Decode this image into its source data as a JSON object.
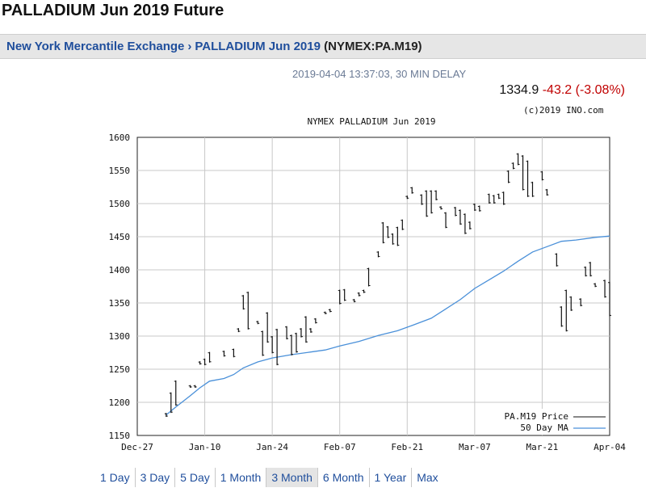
{
  "title": "PALLADIUM Jun 2019 Future",
  "breadcrumb": {
    "exchange": "New York Mercantile Exchange",
    "separator": "›",
    "contract": "PALLADIUM Jun 2019",
    "symbol": "(NYMEX:PA.M19)"
  },
  "timestamp": "2019-04-04 13:37:03, 30 MIN DELAY",
  "quote": {
    "price": "1334.9",
    "change": "-43.2",
    "change_pct": "(-3.08%)"
  },
  "copyright": "(c)2019 INO.com",
  "colors": {
    "price": "#111111",
    "ma": "#4a90d9",
    "negative": "#c00000",
    "link": "#1f4e9c"
  },
  "ranges": [
    "1 Day",
    "3 Day",
    "5 Day",
    "1 Month",
    "3 Month",
    "6 Month",
    "1 Year",
    "Max"
  ],
  "active_range": "3 Month",
  "chart_data": {
    "type": "line",
    "title": "NYMEX PALLADIUM Jun 2019",
    "ylim": [
      1150,
      1600
    ],
    "yticks": [
      1150,
      1200,
      1250,
      1300,
      1350,
      1400,
      1450,
      1500,
      1550,
      1600
    ],
    "x_range": [
      "2018-12-27",
      "2019-04-04"
    ],
    "xticks": [
      "Dec-27",
      "Jan-10",
      "Jan-24",
      "Feb-07",
      "Feb-21",
      "Mar-07",
      "Mar-21",
      "Apr-04"
    ],
    "grid": true,
    "legend_position": "bottom-right",
    "series": [
      {
        "name": "PA.M19 Price",
        "kind": "ohlc",
        "points": [
          {
            "x": "2019-01-02",
            "low": 1178,
            "high": 1184
          },
          {
            "x": "2019-01-03",
            "low": 1184,
            "high": 1215
          },
          {
            "x": "2019-01-04",
            "low": 1195,
            "high": 1233
          },
          {
            "x": "2019-01-07",
            "low": 1222,
            "high": 1226
          },
          {
            "x": "2019-01-08",
            "low": 1222,
            "high": 1226
          },
          {
            "x": "2019-01-09",
            "low": 1257,
            "high": 1262
          },
          {
            "x": "2019-01-10",
            "low": 1256,
            "high": 1266
          },
          {
            "x": "2019-01-11",
            "low": 1260,
            "high": 1276
          },
          {
            "x": "2019-01-14",
            "low": 1269,
            "high": 1278
          },
          {
            "x": "2019-01-16",
            "low": 1268,
            "high": 1281
          },
          {
            "x": "2019-01-17",
            "low": 1306,
            "high": 1312
          },
          {
            "x": "2019-01-18",
            "low": 1340,
            "high": 1362
          },
          {
            "x": "2019-01-19",
            "low": 1310,
            "high": 1367
          },
          {
            "x": "2019-01-21",
            "low": 1318,
            "high": 1323
          },
          {
            "x": "2019-01-22",
            "low": 1270,
            "high": 1308
          },
          {
            "x": "2019-01-23",
            "low": 1290,
            "high": 1336
          },
          {
            "x": "2019-01-24",
            "low": 1274,
            "high": 1300
          },
          {
            "x": "2019-01-25",
            "low": 1256,
            "high": 1311
          },
          {
            "x": "2019-01-27",
            "low": 1295,
            "high": 1315
          },
          {
            "x": "2019-01-28",
            "low": 1271,
            "high": 1302
          },
          {
            "x": "2019-01-29",
            "low": 1275,
            "high": 1305
          },
          {
            "x": "2019-01-30",
            "low": 1298,
            "high": 1312
          },
          {
            "x": "2019-01-31",
            "low": 1290,
            "high": 1330
          },
          {
            "x": "2019-02-01",
            "low": 1305,
            "high": 1312
          },
          {
            "x": "2019-02-02",
            "low": 1319,
            "high": 1327
          },
          {
            "x": "2019-02-04",
            "low": 1333,
            "high": 1337
          },
          {
            "x": "2019-02-05",
            "low": 1336,
            "high": 1341
          },
          {
            "x": "2019-02-07",
            "low": 1348,
            "high": 1370
          },
          {
            "x": "2019-02-08",
            "low": 1353,
            "high": 1371
          },
          {
            "x": "2019-02-10",
            "low": 1351,
            "high": 1356
          },
          {
            "x": "2019-02-11",
            "low": 1360,
            "high": 1366
          },
          {
            "x": "2019-02-12",
            "low": 1365,
            "high": 1370
          },
          {
            "x": "2019-02-13",
            "low": 1375,
            "high": 1403
          },
          {
            "x": "2019-02-15",
            "low": 1419,
            "high": 1428
          },
          {
            "x": "2019-02-16",
            "low": 1440,
            "high": 1472
          },
          {
            "x": "2019-02-17",
            "low": 1448,
            "high": 1466
          },
          {
            "x": "2019-02-18",
            "low": 1438,
            "high": 1455
          },
          {
            "x": "2019-02-19",
            "low": 1436,
            "high": 1465
          },
          {
            "x": "2019-02-20",
            "low": 1460,
            "high": 1476
          },
          {
            "x": "2019-02-21",
            "low": 1507,
            "high": 1512
          },
          {
            "x": "2019-02-22",
            "low": 1515,
            "high": 1525
          },
          {
            "x": "2019-02-24",
            "low": 1498,
            "high": 1514
          },
          {
            "x": "2019-02-25",
            "low": 1480,
            "high": 1520
          },
          {
            "x": "2019-02-26",
            "low": 1485,
            "high": 1520
          },
          {
            "x": "2019-02-27",
            "low": 1505,
            "high": 1520
          },
          {
            "x": "2019-02-28",
            "low": 1491,
            "high": 1496
          },
          {
            "x": "2019-03-01",
            "low": 1463,
            "high": 1487
          },
          {
            "x": "2019-03-03",
            "low": 1481,
            "high": 1495
          },
          {
            "x": "2019-03-04",
            "low": 1468,
            "high": 1491
          },
          {
            "x": "2019-03-05",
            "low": 1454,
            "high": 1485
          },
          {
            "x": "2019-03-06",
            "low": 1461,
            "high": 1473
          },
          {
            "x": "2019-03-07",
            "low": 1489,
            "high": 1500
          },
          {
            "x": "2019-03-08",
            "low": 1488,
            "high": 1497
          },
          {
            "x": "2019-03-10",
            "low": 1500,
            "high": 1515
          },
          {
            "x": "2019-03-11",
            "low": 1500,
            "high": 1513
          },
          {
            "x": "2019-03-12",
            "low": 1507,
            "high": 1515
          },
          {
            "x": "2019-03-13",
            "low": 1498,
            "high": 1518
          },
          {
            "x": "2019-03-14",
            "low": 1531,
            "high": 1550
          },
          {
            "x": "2019-03-15",
            "low": 1552,
            "high": 1562
          },
          {
            "x": "2019-03-16",
            "low": 1558,
            "high": 1576
          },
          {
            "x": "2019-03-17",
            "low": 1520,
            "high": 1573
          },
          {
            "x": "2019-03-18",
            "low": 1510,
            "high": 1565
          },
          {
            "x": "2019-03-19",
            "low": 1510,
            "high": 1533
          },
          {
            "x": "2019-03-21",
            "low": 1535,
            "high": 1549
          },
          {
            "x": "2019-03-22",
            "low": 1512,
            "high": 1522
          },
          {
            "x": "2019-03-24",
            "low": 1405,
            "high": 1425
          },
          {
            "x": "2019-03-25",
            "low": 1314,
            "high": 1345
          },
          {
            "x": "2019-03-26",
            "low": 1307,
            "high": 1370
          },
          {
            "x": "2019-03-27",
            "low": 1338,
            "high": 1360
          },
          {
            "x": "2019-03-29",
            "low": 1345,
            "high": 1357
          },
          {
            "x": "2019-03-30",
            "low": 1390,
            "high": 1405
          },
          {
            "x": "2019-03-31",
            "low": 1390,
            "high": 1412
          },
          {
            "x": "2019-04-01",
            "low": 1374,
            "high": 1380
          },
          {
            "x": "2019-04-03",
            "low": 1358,
            "high": 1385
          },
          {
            "x": "2019-04-04",
            "low": 1330,
            "high": 1382
          }
        ]
      },
      {
        "name": "50 Day MA",
        "kind": "line",
        "points": [
          {
            "x": "2019-01-02",
            "y": 1181
          },
          {
            "x": "2019-01-04",
            "y": 1193
          },
          {
            "x": "2019-01-07",
            "y": 1210
          },
          {
            "x": "2019-01-09",
            "y": 1222
          },
          {
            "x": "2019-01-11",
            "y": 1232
          },
          {
            "x": "2019-01-14",
            "y": 1236
          },
          {
            "x": "2019-01-16",
            "y": 1242
          },
          {
            "x": "2019-01-18",
            "y": 1252
          },
          {
            "x": "2019-01-21",
            "y": 1261
          },
          {
            "x": "2019-01-24",
            "y": 1267
          },
          {
            "x": "2019-01-28",
            "y": 1272
          },
          {
            "x": "2019-02-01",
            "y": 1276
          },
          {
            "x": "2019-02-04",
            "y": 1279
          },
          {
            "x": "2019-02-07",
            "y": 1285
          },
          {
            "x": "2019-02-11",
            "y": 1292
          },
          {
            "x": "2019-02-15",
            "y": 1301
          },
          {
            "x": "2019-02-19",
            "y": 1308
          },
          {
            "x": "2019-02-22",
            "y": 1316
          },
          {
            "x": "2019-02-26",
            "y": 1327
          },
          {
            "x": "2019-03-01",
            "y": 1341
          },
          {
            "x": "2019-03-04",
            "y": 1355
          },
          {
            "x": "2019-03-07",
            "y": 1372
          },
          {
            "x": "2019-03-10",
            "y": 1385
          },
          {
            "x": "2019-03-13",
            "y": 1398
          },
          {
            "x": "2019-03-16",
            "y": 1413
          },
          {
            "x": "2019-03-19",
            "y": 1427
          },
          {
            "x": "2019-03-22",
            "y": 1435
          },
          {
            "x": "2019-03-25",
            "y": 1443
          },
          {
            "x": "2019-03-28",
            "y": 1445
          },
          {
            "x": "2019-04-01",
            "y": 1449
          },
          {
            "x": "2019-04-04",
            "y": 1451
          }
        ]
      }
    ]
  }
}
